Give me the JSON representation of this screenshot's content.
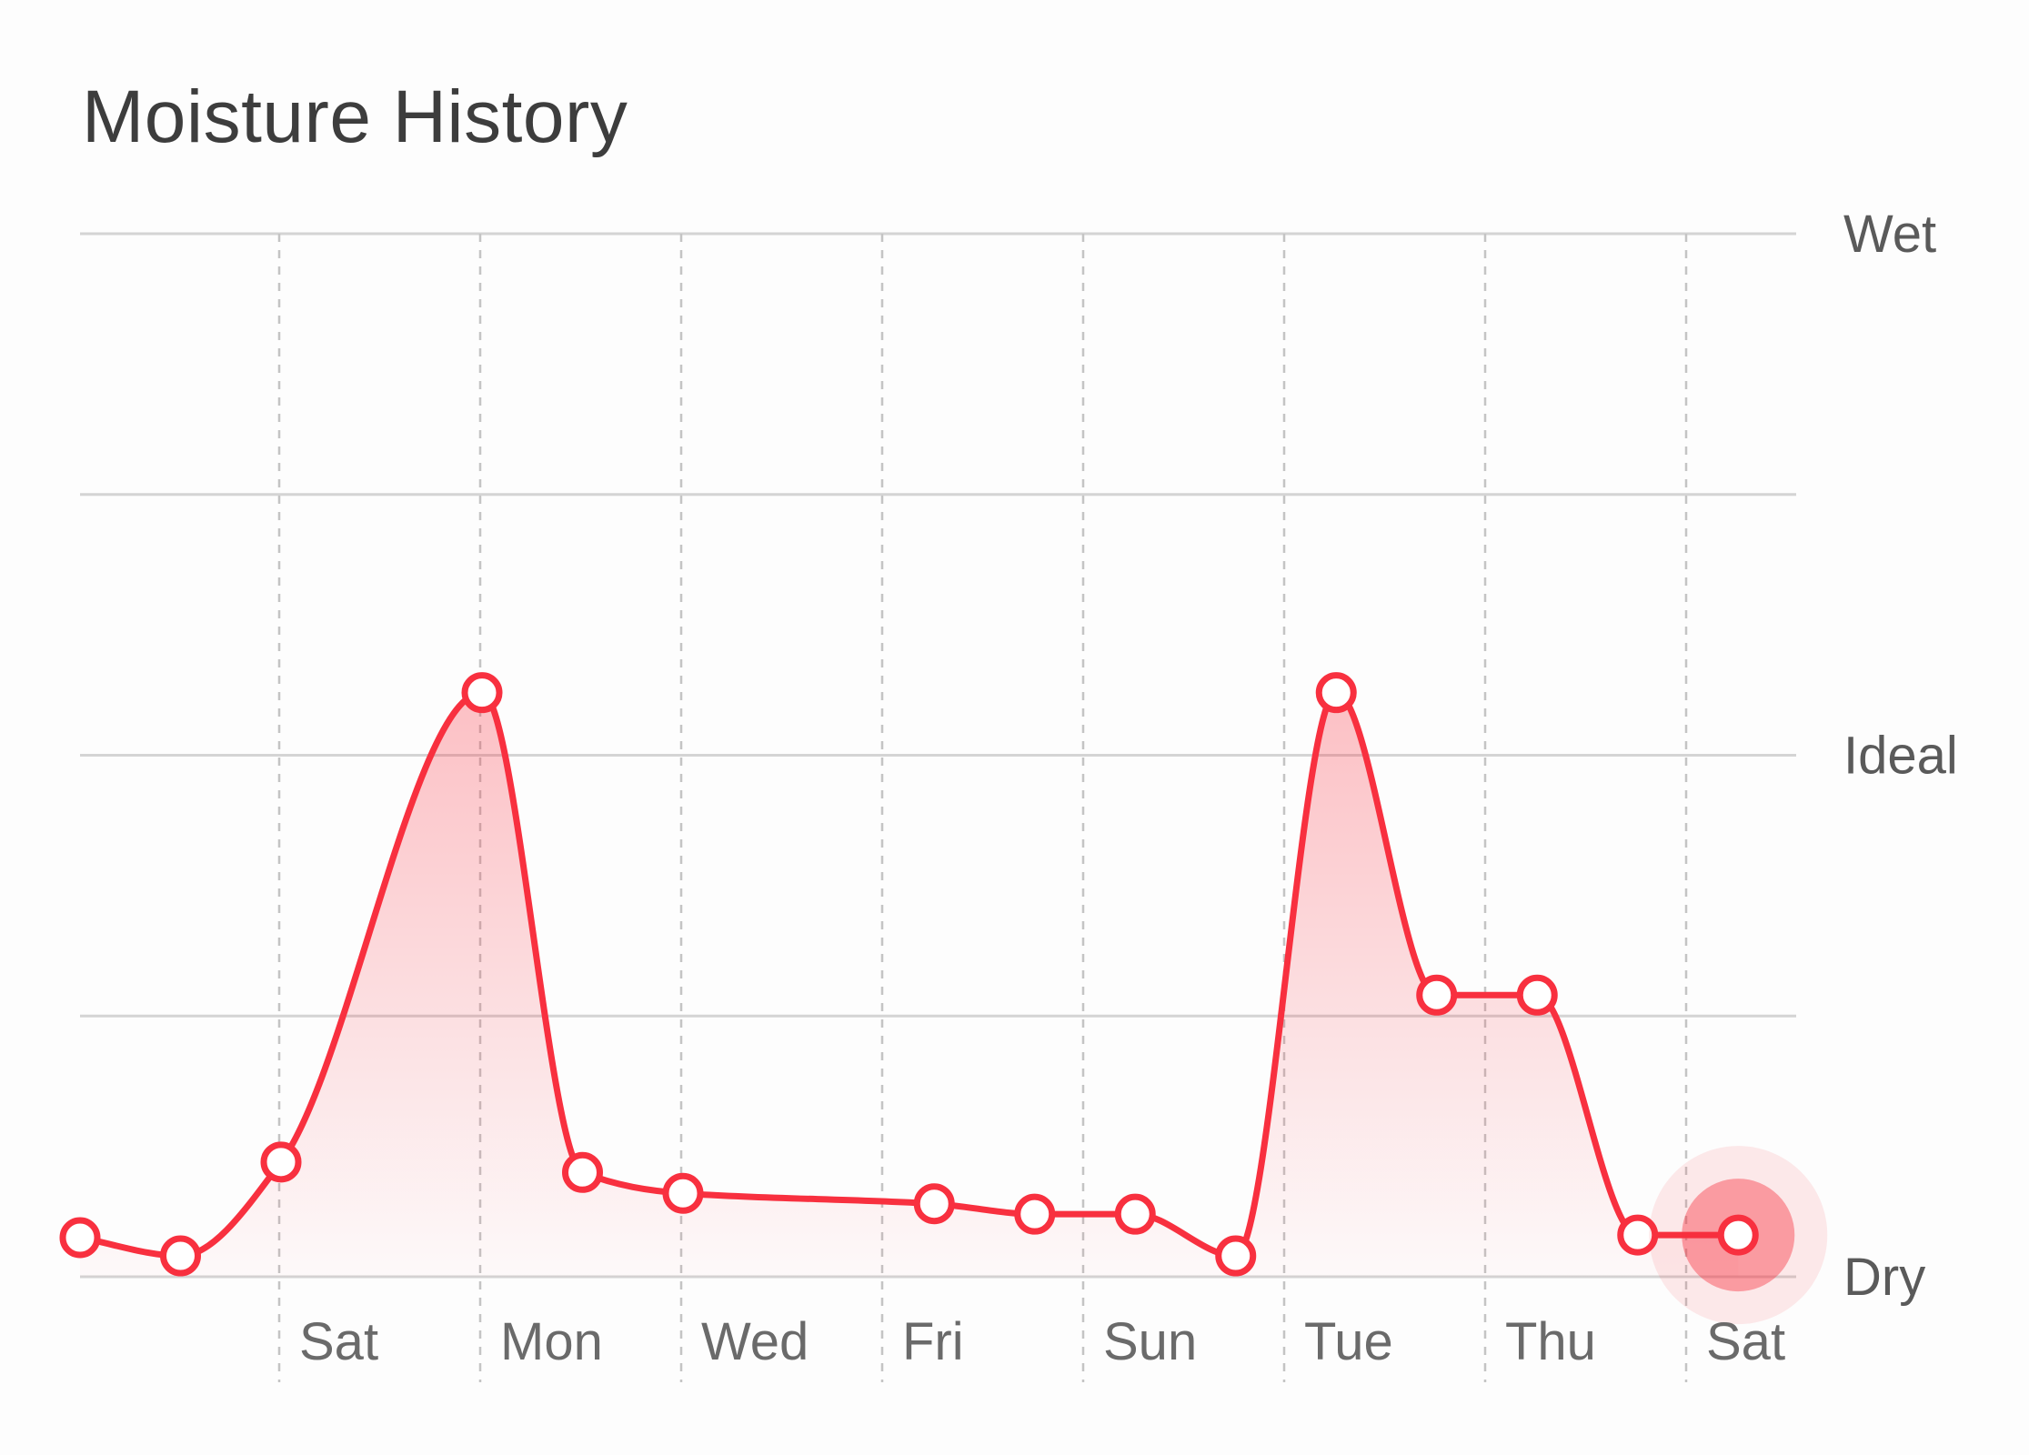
{
  "chart_data": {
    "type": "area",
    "title": "Moisture History",
    "y_levels": [
      "Dry",
      "Ideal",
      "Wet"
    ],
    "ylim": [
      0,
      4
    ],
    "x_ticks": [
      2,
      4,
      6,
      8,
      10,
      12,
      14,
      16
    ],
    "tick_labels": [
      "Sat",
      "Mon",
      "Wed",
      "Fri",
      "Sun",
      "Tue",
      "Thu",
      "Sat"
    ],
    "x": [
      0,
      1,
      2,
      4,
      5,
      6,
      8.5,
      9.5,
      10.5,
      11.5,
      12.5,
      13.5,
      14.5,
      15.5,
      16.5
    ],
    "y": [
      0.15,
      0.08,
      0.44,
      2.24,
      0.4,
      0.32,
      0.28,
      0.24,
      0.24,
      0.08,
      2.24,
      1.08,
      1.08,
      0.16,
      0.16
    ],
    "highlighted_index": 14,
    "colors": {
      "line": "#f8303f",
      "fill": "#f8303f",
      "grid": "#d4d4d4"
    }
  }
}
